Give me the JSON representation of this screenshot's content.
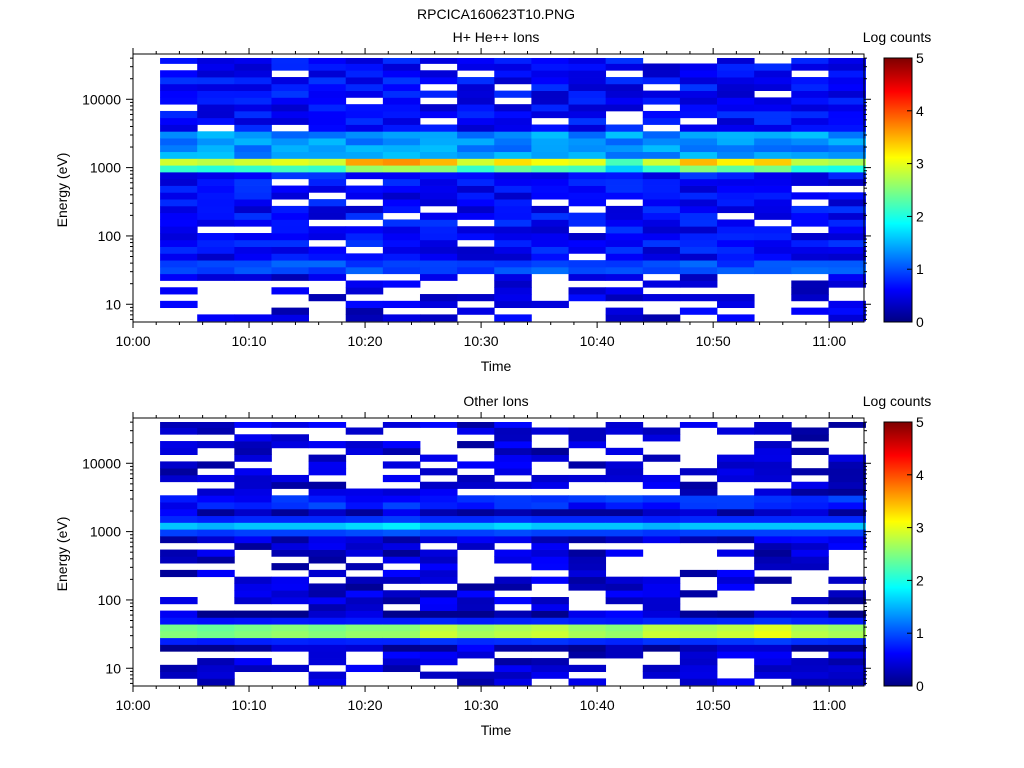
{
  "figure_title": "RPCICA160623T10.PNG",
  "colorbar": {
    "colormap": [
      "#00007f",
      "#0000ff",
      "#007fff",
      "#00ffff",
      "#7fff7f",
      "#ffff00",
      "#ff7f00",
      "#ff0000",
      "#7f0000"
    ]
  },
  "chart_data": [
    {
      "type": "heatmap",
      "title": "H+ He++ Ions",
      "xlabel": "Time",
      "ylabel": "Energy (eV)",
      "colorbar_label": "Log counts",
      "colorbar_ticks": [
        "0",
        "1",
        "2",
        "3",
        "4",
        "5"
      ],
      "color_range": [
        0,
        5
      ],
      "x_ticks": [
        "10:00",
        "10:10",
        "10:20",
        "10:30",
        "10:40",
        "10:50",
        "11:00"
      ],
      "y_ticks": [
        "10",
        "100",
        "1000",
        "10000"
      ],
      "x_range": [
        "10:00",
        "11:03"
      ],
      "y_range": [
        5.5,
        46000
      ],
      "y_scale": "log",
      "time_start": "10:02:20",
      "time_step_minutes": 3.2,
      "series": [
        {
          "peak_energy_ev": 1150,
          "peak_log_counts": [
            3.0,
            2.9,
            3.0,
            3.1,
            3.0,
            3.7,
            3.8,
            3.6,
            3.0,
            3.4,
            3.2,
            3.1,
            2.3,
            3.0,
            3.6,
            3.3,
            3.5,
            2.9,
            2.8
          ]
        }
      ]
    },
    {
      "type": "heatmap",
      "title": "Other Ions",
      "xlabel": "Time",
      "ylabel": "Energy (eV)",
      "colorbar_label": "Log counts",
      "colorbar_ticks": [
        "0",
        "1",
        "2",
        "3",
        "4",
        "5"
      ],
      "color_range": [
        0,
        5
      ],
      "x_ticks": [
        "10:00",
        "10:10",
        "10:20",
        "10:30",
        "10:40",
        "10:50",
        "11:00"
      ],
      "y_ticks": [
        "10",
        "100",
        "1000",
        "10000"
      ],
      "x_range": [
        "10:00",
        "11:03"
      ],
      "y_range": [
        5.5,
        46000
      ],
      "y_scale": "log",
      "time_start": "10:02:20",
      "time_step_minutes": 3.2,
      "series": [
        {
          "peak_energy_ev": 35,
          "peak_log_counts": [
            2.9,
            2.8,
            2.9,
            3.0,
            2.9,
            3.0,
            3.0,
            3.3,
            3.1,
            3.2,
            3.3,
            3.1,
            3.0,
            3.3,
            3.2,
            3.3,
            3.5,
            3.2,
            3.1
          ]
        },
        {
          "peak_energy_ev": 1200,
          "peak_log_counts": [
            1.6,
            1.5,
            1.6,
            1.6,
            1.6,
            1.7,
            1.8,
            1.6,
            1.6,
            1.7,
            1.6,
            1.6,
            1.6,
            1.5,
            1.6,
            1.6,
            1.6,
            1.6,
            1.6
          ]
        }
      ]
    }
  ]
}
